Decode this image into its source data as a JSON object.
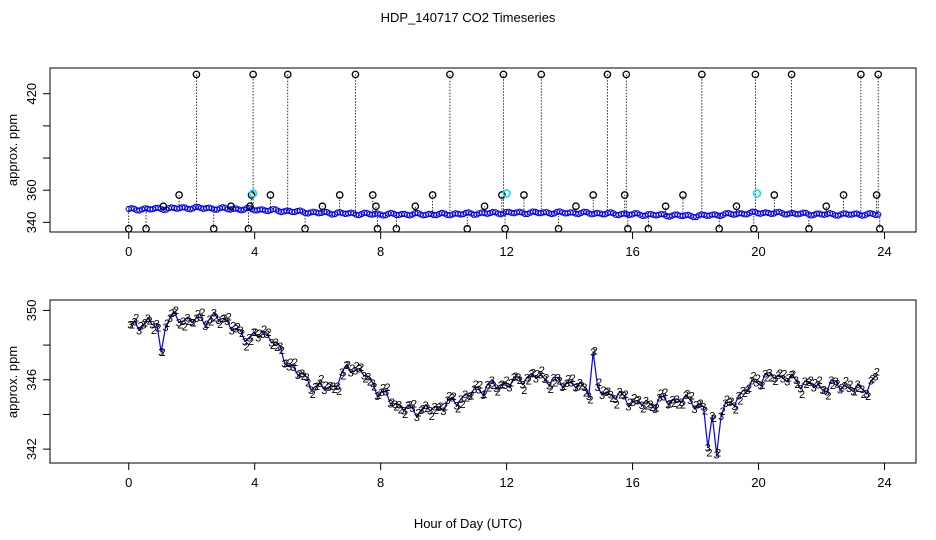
{
  "figure": {
    "title": "HDP_140717  CO2 Timeseries",
    "xlabel": "Hour of Day (UTC)"
  },
  "colors": {
    "frame": "#000000",
    "blue": "#0000ee",
    "green": "#00cc00",
    "cyan": "#00e5ee",
    "black": "#000000"
  },
  "chart_data": [
    {
      "type": "scatter",
      "title": "",
      "xlabel": "",
      "ylabel": "approx. ppm",
      "xlim": [
        -2.5,
        25
      ],
      "ylim": [
        334,
        436
      ],
      "x_ticks": [
        0,
        4,
        8,
        12,
        16,
        20,
        24
      ],
      "y_ticks": [
        340,
        360,
        380,
        400,
        420
      ],
      "y_tick_labels": [
        "340",
        "360",
        "",
        "",
        "420"
      ],
      "grid": false,
      "legend": "none",
      "main_series": {
        "name": "",
        "marker": "circle",
        "color": "blue",
        "start_hour": 0.0,
        "end_hour": 23.8,
        "profile_x": [
          0,
          2,
          4,
          6,
          8,
          10,
          12,
          14,
          16,
          18,
          20,
          22,
          23.8
        ],
        "profile_y": [
          348,
          349,
          348,
          346,
          345,
          345,
          346,
          346,
          345,
          344,
          346,
          345,
          345
        ]
      },
      "spikes": {
        "color": "black",
        "marker": "circle",
        "hours": [
          0.0,
          0.55,
          1.1,
          1.6,
          2.15,
          2.7,
          3.25,
          3.8,
          3.85,
          3.9,
          3.95,
          4.5,
          5.05,
          5.6,
          6.15,
          6.7,
          7.2,
          7.75,
          7.85,
          7.9,
          8.5,
          9.1,
          9.65,
          10.2,
          10.75,
          11.3,
          11.85,
          11.9,
          11.95,
          12.55,
          13.1,
          13.65,
          14.2,
          14.75,
          15.2,
          15.75,
          15.8,
          15.85,
          16.5,
          17.05,
          17.6,
          18.2,
          18.75,
          19.3,
          19.85,
          19.9,
          20.5,
          21.05,
          21.6,
          22.15,
          22.7,
          23.25,
          23.75,
          23.8,
          23.85
        ],
        "values": [
          336,
          336,
          350,
          357,
          432,
          336,
          350,
          336,
          350,
          357,
          432,
          357,
          432,
          336,
          350,
          357,
          432,
          357,
          350,
          336,
          336,
          350,
          357,
          432,
          336,
          350,
          357,
          432,
          336,
          357,
          432,
          336,
          350,
          357,
          432,
          357,
          432,
          336,
          336,
          350,
          357,
          432,
          336,
          350,
          336,
          432,
          357,
          432,
          336,
          350,
          357,
          432,
          357,
          432,
          336
        ]
      },
      "cyan_points": [
        {
          "x": 3.95,
          "y": 358
        },
        {
          "x": 12.0,
          "y": 358
        },
        {
          "x": 19.95,
          "y": 358
        }
      ]
    },
    {
      "type": "scatter",
      "title": "",
      "xlabel": "Hour of Day (UTC)",
      "ylabel": "approx. ppm",
      "xlim": [
        -2.5,
        25
      ],
      "ylim": [
        341.2,
        350.6
      ],
      "x_ticks": [
        0,
        4,
        8,
        12,
        16,
        20,
        24
      ],
      "y_ticks": [
        342,
        344,
        346,
        348,
        350
      ],
      "y_tick_labels": [
        "342",
        "",
        "346",
        "",
        "350"
      ],
      "grid": false,
      "legend": "none",
      "series": [
        {
          "name": "",
          "marker": "3",
          "color": "blue",
          "line": true
        },
        {
          "name": "",
          "marker": "2",
          "color": "green",
          "line": false
        }
      ],
      "profile_x": [
        0,
        0.5,
        1.0,
        1.5,
        2.0,
        2.5,
        3.0,
        3.5,
        4.0,
        4.5,
        5.0,
        5.5,
        6.0,
        6.5,
        7.0,
        7.5,
        8.0,
        8.5,
        9.0,
        9.5,
        10.0,
        10.5,
        11.0,
        11.5,
        12.0,
        12.5,
        13.0,
        13.5,
        14.0,
        14.5,
        15.0,
        15.5,
        16.0,
        16.5,
        17.0,
        17.5,
        18.0,
        18.5,
        19.0,
        19.5,
        20.0,
        20.5,
        21.0,
        21.5,
        22.0,
        22.5,
        23.0,
        23.5,
        23.8
      ],
      "profile_y": [
        349.0,
        349.3,
        349.2,
        349.6,
        349.4,
        349.5,
        349.6,
        348.6,
        348.5,
        348.6,
        347.0,
        346.2,
        345.5,
        345.6,
        346.8,
        346.3,
        345.2,
        344.6,
        344.2,
        344.3,
        344.5,
        344.9,
        345.3,
        345.7,
        345.7,
        346.1,
        346.2,
        345.9,
        345.8,
        345.5,
        345.3,
        345.1,
        344.7,
        344.6,
        344.8,
        344.9,
        344.7,
        343.8,
        344.4,
        345.3,
        346.0,
        346.3,
        346.0,
        345.8,
        345.5,
        345.8,
        345.4,
        345.6,
        346.2
      ],
      "blue_spikes": [
        {
          "x": 1.0,
          "y": 347.6
        },
        {
          "x": 14.7,
          "y": 347.6
        },
        {
          "x": 18.45,
          "y": 342.1
        },
        {
          "x": 18.7,
          "y": 341.7
        }
      ]
    }
  ]
}
